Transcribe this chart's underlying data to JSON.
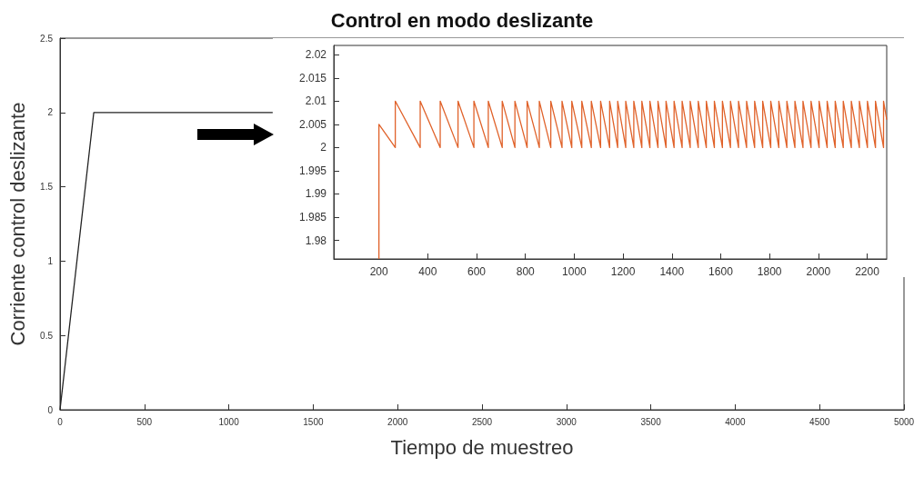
{
  "chart_data": [
    {
      "type": "line",
      "title": "Control en modo deslizante",
      "xlabel": "Tiempo de muestreo",
      "ylabel": "Corriente control deslizante",
      "xlim": [
        0,
        5000
      ],
      "xticks": [
        0,
        500,
        1000,
        1500,
        2000,
        2500,
        3000,
        3500,
        4000,
        4500,
        5000
      ],
      "ylim": [
        0,
        2.5
      ],
      "yticks": [
        0,
        0.5,
        1,
        1.5,
        2,
        2.5
      ],
      "marker": "none",
      "series": [
        {
          "color": "#222222",
          "x": [
            0,
            200,
            1260
          ],
          "values": [
            0,
            2,
            2
          ]
        }
      ]
    },
    {
      "type": "line",
      "xlim": [
        15,
        2280
      ],
      "xticks": [
        200,
        400,
        600,
        800,
        1000,
        1200,
        1400,
        1600,
        1800,
        2000,
        2200
      ],
      "ylim": [
        1.976,
        2.022
      ],
      "yticks": [
        1.98,
        1.985,
        1.99,
        1.995,
        2,
        2.005,
        2.01,
        2.015,
        2.02
      ],
      "marker": "none",
      "series": [
        {
          "color": "#e0622a",
          "x": [
            200,
            200,
            267,
            267,
            369,
            369,
            451,
            451,
            524,
            524,
            589,
            589,
            648,
            648,
            705,
            705,
            757,
            757,
            807,
            807,
            857,
            857,
            904,
            904,
            950,
            950,
            990,
            990,
            1031,
            1031,
            1070,
            1070,
            1108,
            1108,
            1145,
            1145,
            1178,
            1178,
            1211,
            1211,
            1244,
            1244,
            1277,
            1277,
            1310,
            1310,
            1343,
            1343,
            1376,
            1376,
            1409,
            1409,
            1442,
            1442,
            1475,
            1475,
            1508,
            1508,
            1541,
            1541,
            1574,
            1574,
            1607,
            1607,
            1640,
            1640,
            1673,
            1673,
            1706,
            1706,
            1739,
            1739,
            1772,
            1772,
            1805,
            1805,
            1838,
            1838,
            1871,
            1871,
            1904,
            1904,
            1937,
            1937,
            1970,
            1970,
            2003,
            2003,
            2036,
            2036,
            2069,
            2069,
            2102,
            2102,
            2135,
            2135,
            2168,
            2168,
            2201,
            2201,
            2234,
            2234,
            2267,
            2267,
            2280
          ],
          "values": [
            1.976,
            2.005,
            2,
            2.01,
            2,
            2.01,
            2,
            2.01,
            2,
            2.01,
            2,
            2.01,
            2,
            2.01,
            2,
            2.01,
            2,
            2.01,
            2,
            2.01,
            2,
            2.01,
            2,
            2.01,
            2,
            2.01,
            2,
            2.01,
            2,
            2.01,
            2,
            2.01,
            2,
            2.01,
            2,
            2.01,
            2,
            2.01,
            2,
            2.01,
            2,
            2.01,
            2,
            2.01,
            2,
            2.01,
            2,
            2.01,
            2,
            2.01,
            2,
            2.01,
            2,
            2.01,
            2,
            2.01,
            2,
            2.01,
            2,
            2.01,
            2,
            2.01,
            2,
            2.01,
            2,
            2.01,
            2,
            2.01,
            2,
            2.01,
            2,
            2.01,
            2,
            2.01,
            2,
            2.01,
            2,
            2.01,
            2,
            2.01,
            2,
            2.01,
            2,
            2.01,
            2,
            2.01,
            2,
            2.01,
            2,
            2.01,
            2,
            2.01,
            2,
            2.01,
            2,
            2.01,
            2,
            2.01,
            2,
            2.01,
            2,
            2.01,
            2,
            2.01,
            2.006
          ]
        }
      ]
    }
  ]
}
